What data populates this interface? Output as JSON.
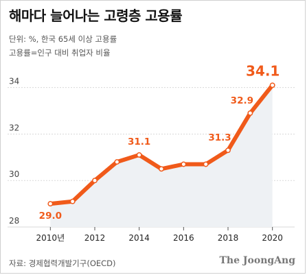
{
  "header": {
    "title": "해마다 늘어나는 고령층 고용률",
    "subtitle_line1": "단위: %, 한국 65세 이상 고용률",
    "subtitle_line2": "고용률=인구 대비 취업자 비율"
  },
  "footer": {
    "source": "자료: 경제협력개발기구(OECD)",
    "logo": "The JoongAng"
  },
  "colors": {
    "line": "#f05a1a",
    "area": "#eef1f4",
    "label": "#f05a1a"
  },
  "chart_data": {
    "type": "area",
    "title": "해마다 늘어나는 고령층 고용률",
    "x": [
      2010,
      2011,
      2012,
      2013,
      2014,
      2015,
      2016,
      2017,
      2018,
      2019,
      2020
    ],
    "x_tick_values": [
      2010,
      2012,
      2014,
      2016,
      2018,
      2020
    ],
    "x_tick_labels": [
      "2010년",
      "2012",
      "2014",
      "2016",
      "2018",
      "2020"
    ],
    "series": [
      {
        "values": [
          29.0,
          29.1,
          30.0,
          30.8,
          31.1,
          30.5,
          30.7,
          30.7,
          31.3,
          32.9,
          34.1
        ]
      }
    ],
    "data_labels": [
      {
        "x": 2010,
        "text": "29.0"
      },
      {
        "x": 2014,
        "text": "31.1"
      },
      {
        "x": 2018,
        "text": "31.3"
      },
      {
        "x": 2019,
        "text": "32.9"
      },
      {
        "x": 2020,
        "text": "34.1"
      }
    ],
    "y_ticks": [
      28,
      30,
      32,
      34
    ],
    "ylim": [
      28,
      35.2
    ],
    "xlabel": "",
    "ylabel": "",
    "grid": true
  }
}
